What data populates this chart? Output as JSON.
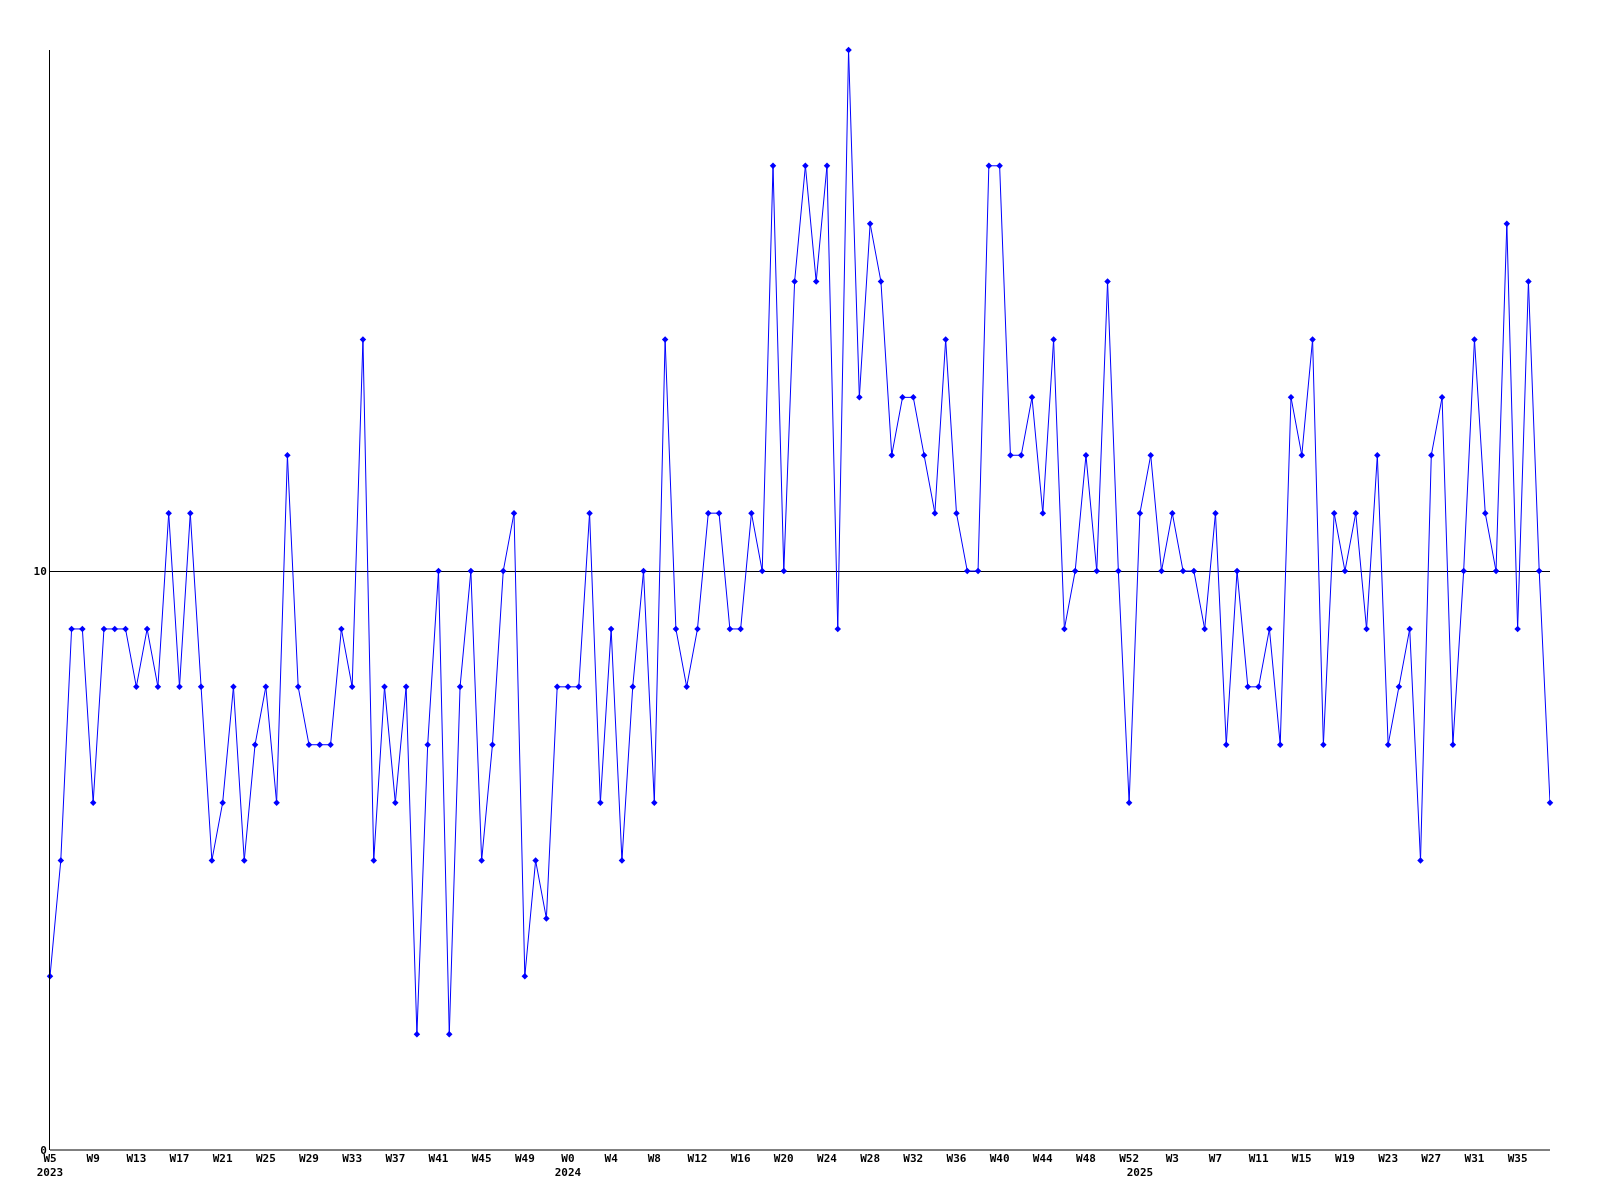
{
  "chart_data": {
    "type": "line",
    "categories": [
      "W5\n2023",
      null,
      null,
      null,
      "W9",
      null,
      null,
      null,
      "W13",
      null,
      null,
      null,
      "W17",
      null,
      null,
      null,
      "W21",
      null,
      null,
      null,
      "W25",
      null,
      null,
      null,
      "W29",
      null,
      null,
      null,
      "W33",
      null,
      null,
      null,
      "W37",
      null,
      null,
      null,
      "W41",
      null,
      null,
      null,
      "W45",
      null,
      null,
      null,
      "W49",
      null,
      null,
      null,
      "W0\n2024",
      null,
      null,
      null,
      "W4",
      null,
      null,
      null,
      "W8",
      null,
      null,
      null,
      "W12",
      null,
      null,
      null,
      "W16",
      null,
      null,
      null,
      "W20",
      null,
      null,
      null,
      "W24",
      null,
      null,
      null,
      "W28",
      null,
      null,
      null,
      "W32",
      null,
      null,
      null,
      "W36",
      null,
      null,
      null,
      "W40",
      null,
      null,
      null,
      "W44",
      null,
      null,
      null,
      "W48",
      null,
      null,
      null,
      "W52",
      "\n2025",
      null,
      null,
      "W3",
      null,
      null,
      null,
      "W7",
      null,
      null,
      null,
      "W11",
      null,
      null,
      null,
      "W15",
      null,
      null,
      null,
      "W19",
      null,
      null,
      null,
      "W23",
      null,
      null,
      null,
      "W27",
      null,
      null,
      null,
      "W31",
      null,
      null,
      null,
      "W35",
      null,
      null,
      null
    ],
    "series": [
      {
        "color": "#0000ff",
        "values": [
          3,
          5,
          9,
          9,
          6,
          9,
          9,
          9,
          8,
          9,
          8,
          11,
          8,
          11,
          8,
          5,
          6,
          8,
          5,
          7,
          8,
          6,
          12,
          8,
          7,
          7,
          7,
          9,
          8,
          14,
          5,
          8,
          6,
          8,
          2,
          7,
          10,
          2,
          8,
          10,
          5,
          7,
          10,
          11,
          3,
          5,
          4,
          8,
          8,
          8,
          11,
          6,
          9,
          5,
          8,
          10,
          6,
          14,
          9,
          8,
          9,
          11,
          11,
          9,
          9,
          11,
          10,
          17,
          10,
          15,
          17,
          15,
          17,
          9,
          19,
          13,
          16,
          15,
          12,
          13,
          13,
          12,
          11,
          14,
          11,
          10,
          10,
          17,
          17,
          12,
          12,
          13,
          11,
          14,
          9,
          10,
          12,
          10,
          15,
          10,
          6,
          11,
          12,
          10,
          11,
          10,
          10,
          9,
          11,
          7,
          10,
          8,
          8,
          9,
          7,
          13,
          12,
          14,
          7,
          11,
          10,
          11,
          9,
          12,
          7,
          8,
          9,
          5,
          12,
          13,
          7,
          10,
          14,
          11,
          10,
          16,
          9,
          15,
          10,
          6
        ]
      }
    ],
    "ylim": [
      0,
      19
    ],
    "yticks": [
      0,
      10
    ],
    "grid": "y",
    "marker": "diamond",
    "line_style": "solid"
  }
}
